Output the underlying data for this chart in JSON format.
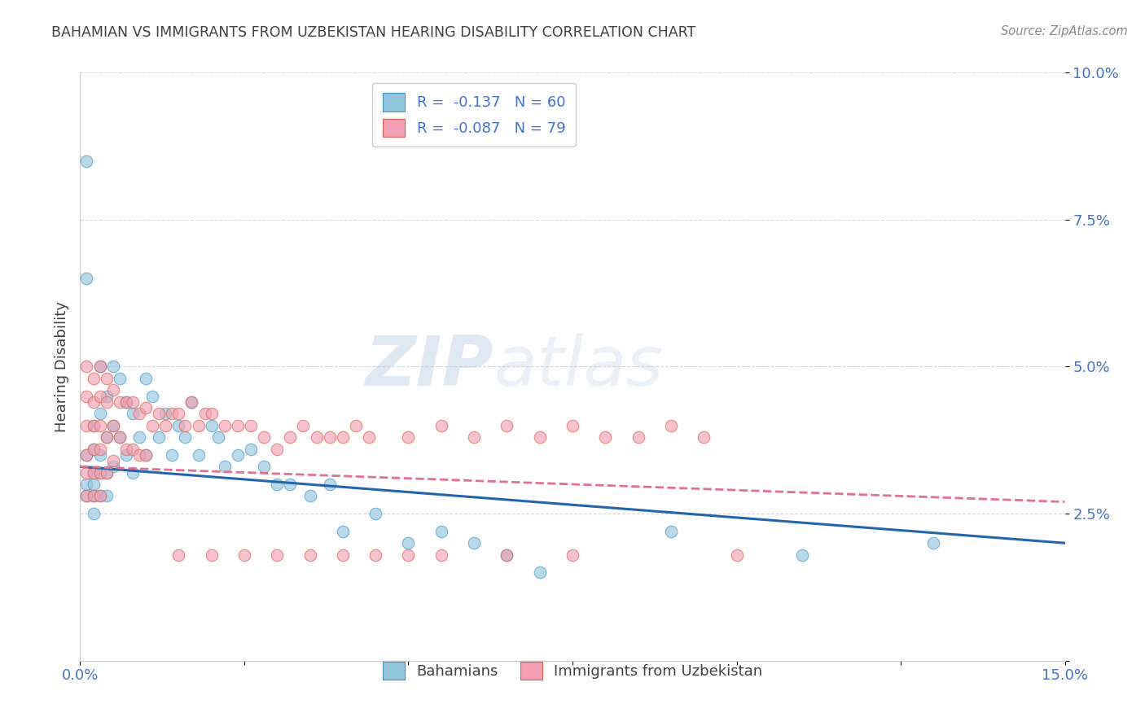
{
  "title": "BAHAMIAN VS IMMIGRANTS FROM UZBEKISTAN HEARING DISABILITY CORRELATION CHART",
  "source": "Source: ZipAtlas.com",
  "xlabel_bahamians": "Bahamians",
  "xlabel_uzbekistan": "Immigrants from Uzbekistan",
  "ylabel": "Hearing Disability",
  "xlim": [
    0.0,
    0.15
  ],
  "ylim": [
    0.0,
    0.1
  ],
  "xtick_labels": [
    "0.0%",
    "",
    "",
    "",
    "",
    "",
    "15.0%"
  ],
  "ytick_labels": [
    "",
    "2.5%",
    "5.0%",
    "7.5%",
    "10.0%"
  ],
  "blue_color": "#92c5de",
  "pink_color": "#f4a0b5",
  "blue_edge_color": "#4393c3",
  "pink_edge_color": "#d6604d",
  "blue_line_color": "#2166ac",
  "pink_line_color": "#e07090",
  "R_blue": -0.137,
  "N_blue": 60,
  "R_pink": -0.087,
  "N_pink": 79,
  "watermark_zip": "ZIP",
  "watermark_atlas": "atlas",
  "background_color": "#ffffff",
  "grid_color": "#cccccc",
  "title_color": "#404040",
  "axis_tick_color": "#4472c4",
  "blue_scatter_x": [
    0.001,
    0.001,
    0.001,
    0.001,
    0.001,
    0.002,
    0.002,
    0.002,
    0.002,
    0.002,
    0.002,
    0.003,
    0.003,
    0.003,
    0.003,
    0.003,
    0.004,
    0.004,
    0.004,
    0.004,
    0.005,
    0.005,
    0.005,
    0.006,
    0.006,
    0.007,
    0.007,
    0.008,
    0.008,
    0.009,
    0.01,
    0.01,
    0.011,
    0.012,
    0.013,
    0.014,
    0.015,
    0.016,
    0.017,
    0.018,
    0.02,
    0.021,
    0.022,
    0.024,
    0.026,
    0.028,
    0.03,
    0.032,
    0.035,
    0.038,
    0.04,
    0.045,
    0.05,
    0.055,
    0.06,
    0.065,
    0.07,
    0.09,
    0.11,
    0.13
  ],
  "blue_scatter_y": [
    0.085,
    0.065,
    0.035,
    0.03,
    0.028,
    0.04,
    0.036,
    0.032,
    0.03,
    0.028,
    0.025,
    0.05,
    0.042,
    0.035,
    0.032,
    0.028,
    0.045,
    0.038,
    0.032,
    0.028,
    0.05,
    0.04,
    0.033,
    0.048,
    0.038,
    0.044,
    0.035,
    0.042,
    0.032,
    0.038,
    0.048,
    0.035,
    0.045,
    0.038,
    0.042,
    0.035,
    0.04,
    0.038,
    0.044,
    0.035,
    0.04,
    0.038,
    0.033,
    0.035,
    0.036,
    0.033,
    0.03,
    0.03,
    0.028,
    0.03,
    0.022,
    0.025,
    0.02,
    0.022,
    0.02,
    0.018,
    0.015,
    0.022,
    0.018,
    0.02
  ],
  "pink_scatter_x": [
    0.001,
    0.001,
    0.001,
    0.001,
    0.001,
    0.001,
    0.002,
    0.002,
    0.002,
    0.002,
    0.002,
    0.002,
    0.003,
    0.003,
    0.003,
    0.003,
    0.003,
    0.003,
    0.004,
    0.004,
    0.004,
    0.004,
    0.005,
    0.005,
    0.005,
    0.006,
    0.006,
    0.007,
    0.007,
    0.008,
    0.008,
    0.009,
    0.009,
    0.01,
    0.01,
    0.011,
    0.012,
    0.013,
    0.014,
    0.015,
    0.016,
    0.017,
    0.018,
    0.019,
    0.02,
    0.022,
    0.024,
    0.026,
    0.028,
    0.03,
    0.032,
    0.034,
    0.036,
    0.038,
    0.04,
    0.042,
    0.044,
    0.05,
    0.055,
    0.06,
    0.065,
    0.07,
    0.075,
    0.08,
    0.085,
    0.09,
    0.095,
    0.1,
    0.04,
    0.05,
    0.02,
    0.025,
    0.015,
    0.03,
    0.035,
    0.045,
    0.055,
    0.065,
    0.075
  ],
  "pink_scatter_y": [
    0.05,
    0.045,
    0.04,
    0.035,
    0.032,
    0.028,
    0.048,
    0.044,
    0.04,
    0.036,
    0.032,
    0.028,
    0.05,
    0.045,
    0.04,
    0.036,
    0.032,
    0.028,
    0.048,
    0.044,
    0.038,
    0.032,
    0.046,
    0.04,
    0.034,
    0.044,
    0.038,
    0.044,
    0.036,
    0.044,
    0.036,
    0.042,
    0.035,
    0.043,
    0.035,
    0.04,
    0.042,
    0.04,
    0.042,
    0.042,
    0.04,
    0.044,
    0.04,
    0.042,
    0.042,
    0.04,
    0.04,
    0.04,
    0.038,
    0.036,
    0.038,
    0.04,
    0.038,
    0.038,
    0.038,
    0.04,
    0.038,
    0.038,
    0.04,
    0.038,
    0.04,
    0.038,
    0.04,
    0.038,
    0.038,
    0.04,
    0.038,
    0.018,
    0.018,
    0.018,
    0.018,
    0.018,
    0.018,
    0.018,
    0.018,
    0.018,
    0.018,
    0.018,
    0.018
  ]
}
